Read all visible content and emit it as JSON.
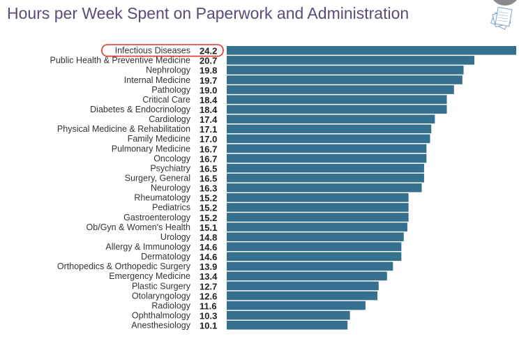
{
  "chart_data": {
    "type": "bar",
    "orientation": "horizontal",
    "title": "Hours per Week Spent on Paperwork and Administration",
    "highlight": "Infectious Diseases",
    "bar_color": "#35708f",
    "highlight_color": "#e0342b",
    "categories": [
      "Infectious Diseases",
      "Public Health & Preventive Medicine",
      "Nephrology",
      "Internal Medicine",
      "Pathology",
      "Critical Care",
      "Diabetes & Endocrinology",
      "Cardiology",
      "Physical Medicine & Rehabilitation",
      "Family Medicine",
      "Pulmonary Medicine",
      "Oncology",
      "Psychiatry",
      "Surgery, General",
      "Neurology",
      "Rheumatology",
      "Pediatrics",
      "Gastroenterology",
      "Ob/Gyn & Women's Health",
      "Urology",
      "Allergy & Immunology",
      "Dermatology",
      "Orthopedics & Orthopedic Surgery",
      "Emergency Medicine",
      "Plastic Surgery",
      "Otolaryngology",
      "Radiology",
      "Ophthalmology",
      "Anesthesiology"
    ],
    "values": [
      24.2,
      20.7,
      19.8,
      19.7,
      19.0,
      18.4,
      18.4,
      17.4,
      17.1,
      17.0,
      16.7,
      16.7,
      16.5,
      16.5,
      16.3,
      15.2,
      15.2,
      15.2,
      15.1,
      14.8,
      14.6,
      14.6,
      13.9,
      13.4,
      12.7,
      12.6,
      11.6,
      10.3,
      10.1
    ],
    "xlabel": "",
    "ylabel": "",
    "xlim": [
      0,
      24.2
    ],
    "grid": false
  }
}
